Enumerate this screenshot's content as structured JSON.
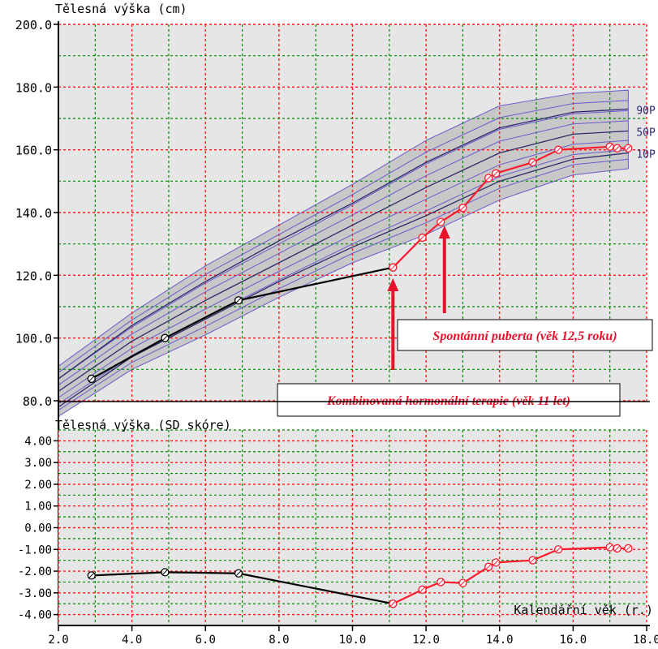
{
  "colors": {
    "background": "#ffffff",
    "panel_shade": "#e6e6e6",
    "grid_green": "#008a00",
    "grid_red": "#ff1a1a",
    "band_fill": "#c8c8c8",
    "percentile_line": "#6a5acd",
    "pre_therapy": "#000000",
    "therapy": "#ff1a2e",
    "annotation": "#e8122b"
  },
  "chart_data": [
    {
      "type": "line",
      "title": "Tělesná výška (cm)",
      "xlim": [
        2.0,
        18.0
      ],
      "ylim": [
        80.0,
        200.0
      ],
      "y_ticks": [
        "80.0",
        "100.0",
        "120.0",
        "140.0",
        "160.0",
        "180.0",
        "200.0"
      ],
      "grid": true,
      "percentiles": [
        {
          "name": "90P",
          "x": [
            2.0,
            4.0,
            6.0,
            8.0,
            10.0,
            12.0,
            14.0,
            16.0,
            17.5
          ],
          "values": [
            87,
            104,
            118,
            131,
            143,
            156,
            167,
            172,
            173
          ]
        },
        {
          "name": "50P",
          "x": [
            2.0,
            4.0,
            6.0,
            8.0,
            10.0,
            12.0,
            14.0,
            16.0,
            17.5
          ],
          "values": [
            83,
            99,
            112,
            124,
            136,
            148,
            159,
            165,
            166
          ]
        },
        {
          "name": "10P",
          "x": [
            2.0,
            4.0,
            6.0,
            8.0,
            10.0,
            12.0,
            14.0,
            16.0,
            17.5
          ],
          "values": [
            78,
            94,
            106,
            118,
            129,
            139,
            150,
            157,
            159
          ]
        }
      ],
      "band": {
        "x": [
          2.0,
          4.0,
          6.0,
          8.0,
          10.0,
          12.0,
          14.0,
          16.0,
          17.5
        ],
        "upper": [
          91,
          108,
          123,
          136,
          149,
          163,
          174,
          178,
          179
        ],
        "lower": [
          75,
          90,
          101,
          113,
          124,
          133,
          144,
          152,
          154
        ]
      },
      "series": [
        {
          "x": [
            2.9,
            4.9,
            6.9,
            11.1
          ],
          "values": [
            87,
            100,
            112,
            122.5
          ]
        },
        {
          "x": [
            11.1,
            11.9,
            12.4,
            13.0,
            13.7,
            13.9,
            14.9,
            15.6,
            17.0,
            17.2,
            17.5
          ],
          "values": [
            122.5,
            132,
            137,
            141.5,
            151,
            152.5,
            156,
            160,
            161,
            160.5,
            160.5
          ]
        }
      ],
      "annotations": [
        {
          "text": "Spontánní puberta (věk 12,5 roku)",
          "x": 12.5
        },
        {
          "text": "Kombinovaná hormonální terapie (věk 11 let)",
          "x": 11.1
        }
      ]
    },
    {
      "type": "line",
      "title": "Tělesná výška (SD skóre)",
      "xlabel": "Kalendářní věk (r.)",
      "xlim": [
        2.0,
        18.0
      ],
      "ylim": [
        -4.5,
        4.5
      ],
      "x_ticks": [
        "2.0",
        "4.0",
        "6.0",
        "8.0",
        "10.0",
        "12.0",
        "14.0",
        "16.0",
        "18.0"
      ],
      "y_ticks": [
        "4.00",
        "3.00",
        "2.00",
        "1.00",
        "0.00",
        "-1.00",
        "-2.00",
        "-3.00",
        "-4.00"
      ],
      "grid": true,
      "series": [
        {
          "x": [
            2.9,
            4.9,
            6.9,
            11.1
          ],
          "values": [
            -2.2,
            -2.05,
            -2.1,
            -3.5
          ]
        },
        {
          "x": [
            11.1,
            11.9,
            12.4,
            13.0,
            13.7,
            13.9,
            14.9,
            15.6,
            17.0,
            17.2,
            17.5
          ],
          "values": [
            -3.5,
            -2.85,
            -2.5,
            -2.55,
            -1.8,
            -1.6,
            -1.5,
            -1.0,
            -0.9,
            -0.95,
            -0.95
          ]
        }
      ]
    }
  ]
}
